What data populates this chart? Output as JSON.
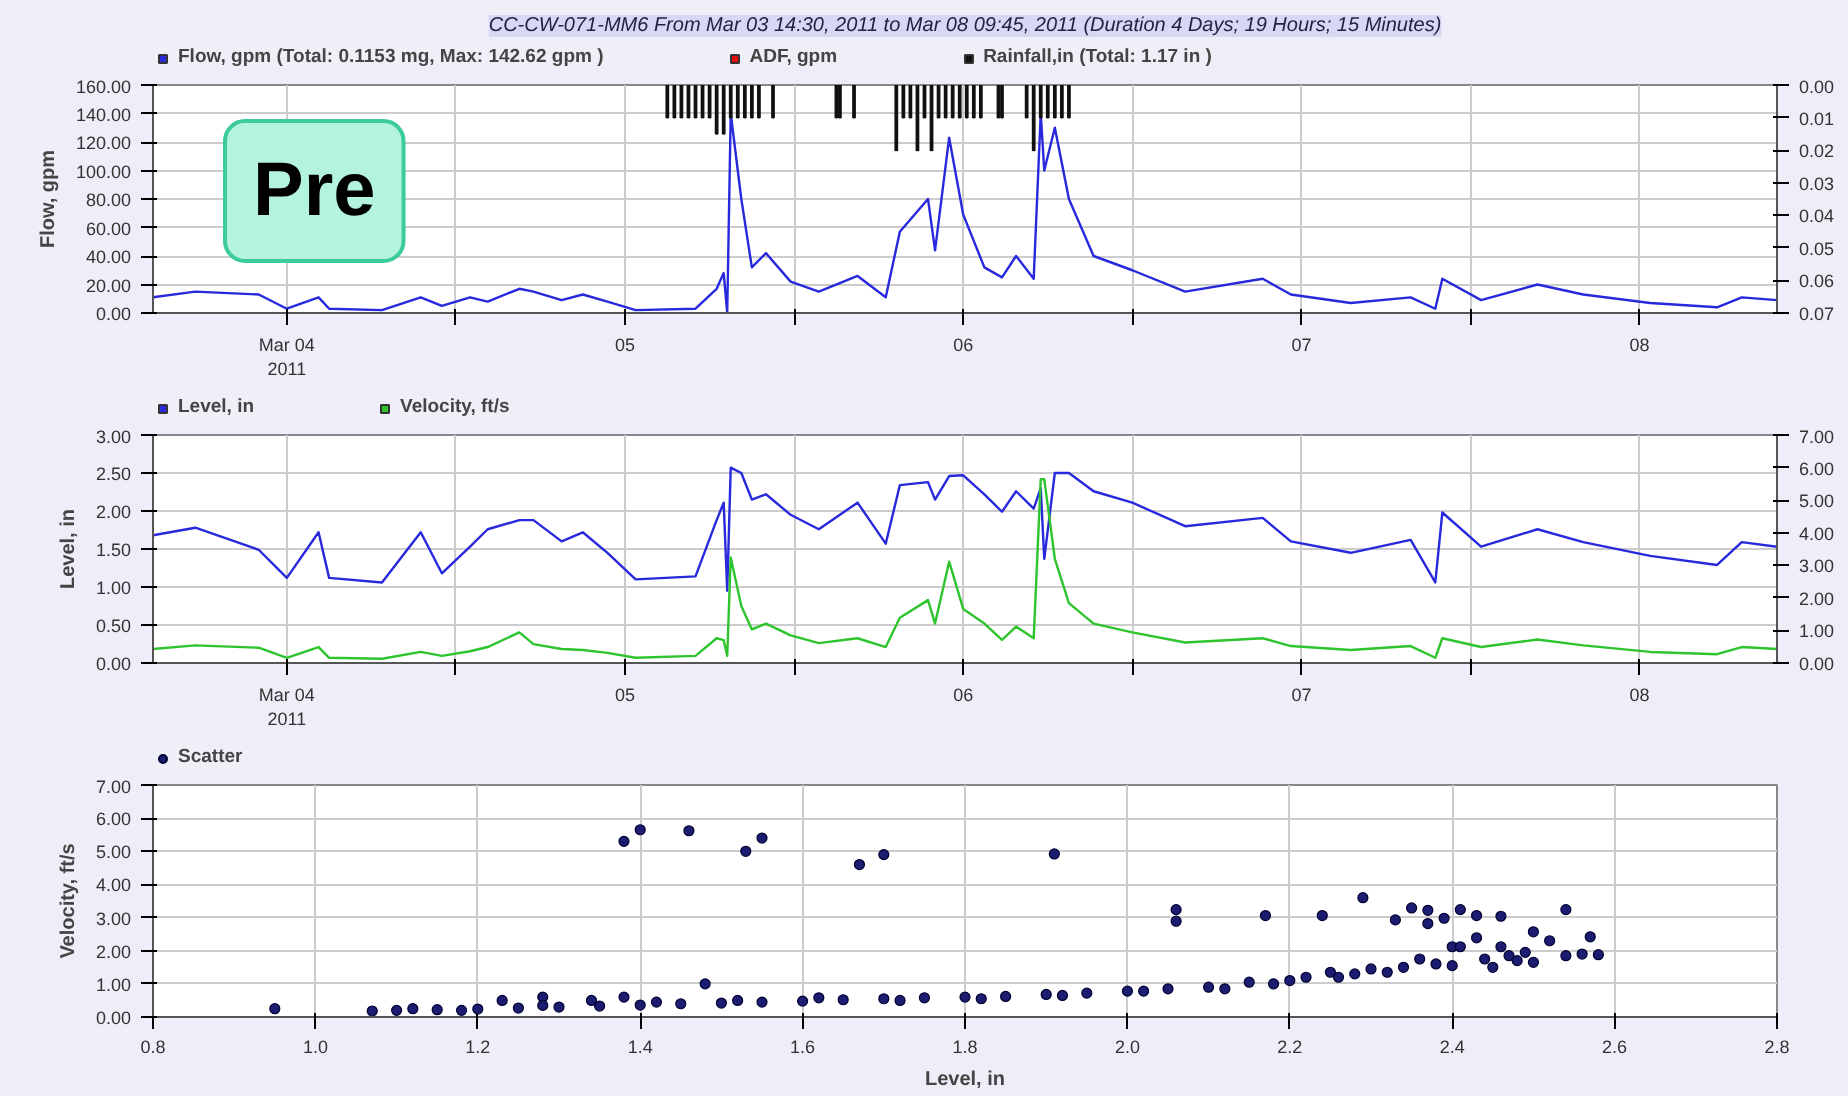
{
  "chart_data": [
    {
      "type": "line",
      "title": "CC-CW-071-MM6 From Mar 03 14:30, 2011 to Mar 08 09:45, 2011 (Duration 4 Days; 19 Hours; 15 Minutes)",
      "ylabel": "Flow, gpm",
      "annotations": [
        "Pre"
      ],
      "legend": "top left",
      "grid": true,
      "x": [
        "2011-03-03T14:30",
        "2011-03-03T17:30",
        "2011-03-03T22:00",
        "2011-03-04T00:00",
        "2011-03-04T02:15",
        "2011-03-04T03:00",
        "2011-03-04T06:45",
        "2011-03-04T09:30",
        "2011-03-04T11:00",
        "2011-03-04T13:00",
        "2011-03-04T14:15",
        "2011-03-04T16:30",
        "2011-03-04T17:30",
        "2011-03-04T19:30",
        "2011-03-04T21:00",
        "2011-03-04T22:45",
        "2011-03-05T00:45",
        "2011-03-05T05:00",
        "2011-03-05T06:30",
        "2011-03-05T07:00",
        "2011-03-05T07:15",
        "2011-03-05T07:30",
        "2011-03-05T08:15",
        "2011-03-05T09:00",
        "2011-03-05T10:00",
        "2011-03-05T11:45",
        "2011-03-05T13:45",
        "2011-03-05T16:30",
        "2011-03-05T18:30",
        "2011-03-05T19:30",
        "2011-03-05T21:30",
        "2011-03-05T22:00",
        "2011-03-05T23:00",
        "2011-03-06T00:00",
        "2011-03-06T01:30",
        "2011-03-06T02:45",
        "2011-03-06T03:45",
        "2011-03-06T05:00",
        "2011-03-06T05:30",
        "2011-03-06T05:45",
        "2011-03-06T06:30",
        "2011-03-06T07:30",
        "2011-03-06T09:15",
        "2011-03-06T12:00",
        "2011-03-06T15:45",
        "2011-03-06T21:15",
        "2011-03-06T23:15",
        "2011-03-07T03:30",
        "2011-03-07T07:45",
        "2011-03-07T09:30",
        "2011-03-07T10:00",
        "2011-03-07T12:45",
        "2011-03-07T16:45",
        "2011-03-07T20:00",
        "2011-03-08T00:45",
        "2011-03-08T05:30",
        "2011-03-08T07:15",
        "2011-03-08T09:45"
      ],
      "series": [
        {
          "name": "Flow, gpm (Total: 0.1153 mg, Max: 142.62 gpm )",
          "color": "#2828dc",
          "values": [
            11,
            15,
            13,
            3,
            11,
            3,
            2,
            11,
            5,
            11,
            8,
            17,
            15,
            9,
            13,
            8,
            2,
            3,
            17,
            28,
            0,
            140,
            80,
            32,
            42,
            22,
            15,
            26,
            11,
            57,
            80,
            44,
            123,
            69,
            32,
            25,
            40,
            24,
            140,
            100,
            130,
            80,
            40,
            30,
            15,
            24,
            13,
            7,
            11,
            3,
            24,
            9,
            20,
            13,
            7,
            4,
            11,
            9
          ]
        },
        {
          "name": "ADF, gpm",
          "color": "#e01010",
          "values": [
            null,
            null,
            null,
            null,
            null,
            null,
            null,
            null,
            null,
            null,
            null,
            null,
            null,
            null,
            null,
            null,
            null,
            null,
            null,
            null,
            null,
            null,
            null,
            null,
            null,
            null,
            null,
            null,
            null,
            null,
            null,
            null,
            null,
            null,
            null,
            null,
            null,
            null,
            null,
            null,
            null,
            null,
            null,
            null,
            null,
            null,
            null,
            null,
            null,
            null,
            null,
            null,
            null,
            null,
            null,
            null,
            null,
            null
          ]
        },
        {
          "name": "Rainfall,in (Total: 1.17 in )",
          "color": "#111111",
          "type": "bar",
          "axis": "y2",
          "x": [
            "2011-03-05T03:00",
            "2011-03-05T03:30",
            "2011-03-05T04:00",
            "2011-03-05T04:30",
            "2011-03-05T05:00",
            "2011-03-05T05:30",
            "2011-03-05T06:00",
            "2011-03-05T06:30",
            "2011-03-05T07:00",
            "2011-03-05T07:30",
            "2011-03-05T08:00",
            "2011-03-05T08:30",
            "2011-03-05T09:00",
            "2011-03-05T09:30",
            "2011-03-05T10:30",
            "2011-03-05T15:00",
            "2011-03-05T15:15",
            "2011-03-05T16:15",
            "2011-03-05T19:15",
            "2011-03-05T19:45",
            "2011-03-05T20:15",
            "2011-03-05T20:45",
            "2011-03-05T21:15",
            "2011-03-05T21:45",
            "2011-03-05T22:15",
            "2011-03-05T22:45",
            "2011-03-05T23:15",
            "2011-03-05T23:45",
            "2011-03-06T00:15",
            "2011-03-06T00:45",
            "2011-03-06T01:15",
            "2011-03-06T02:30",
            "2011-03-06T02:45",
            "2011-03-06T04:30",
            "2011-03-06T05:00",
            "2011-03-06T05:30",
            "2011-03-06T06:00",
            "2011-03-06T06:30",
            "2011-03-06T07:00",
            "2011-03-06T07:30"
          ],
          "values": [
            0.01,
            0.01,
            0.01,
            0.01,
            0.01,
            0.01,
            0.01,
            0.015,
            0.015,
            0.01,
            0.01,
            0.01,
            0.01,
            0.01,
            0.01,
            0.01,
            0.01,
            0.01,
            0.02,
            0.01,
            0.01,
            0.02,
            0.01,
            0.02,
            0.01,
            0.01,
            0.01,
            0.01,
            0.01,
            0.01,
            0.01,
            0.01,
            0.01,
            0.01,
            0.02,
            0.01,
            0.01,
            0.01,
            0.01,
            0.01
          ]
        }
      ],
      "xlim": [
        "2011-03-03T14:30",
        "2011-03-08T09:45"
      ],
      "xticks": [
        {
          "value": "2011-03-04",
          "label": "Mar 04\n2011"
        },
        {
          "value": "2011-03-04T12:00",
          "label": null
        },
        {
          "value": "2011-03-05",
          "label": "05"
        },
        {
          "value": "2011-03-05T12:00",
          "label": null
        },
        {
          "value": "2011-03-06",
          "label": "06"
        },
        {
          "value": "2011-03-06T12:00",
          "label": null
        },
        {
          "value": "2011-03-07",
          "label": "07"
        },
        {
          "value": "2011-03-07T12:00",
          "label": null
        },
        {
          "value": "2011-03-08",
          "label": "08"
        }
      ],
      "ylim": [
        0,
        160
      ],
      "yticks": [
        {
          "value": 0,
          "label": "0.00"
        },
        {
          "value": 20,
          "label": "20.00"
        },
        {
          "value": 40,
          "label": "40.00"
        },
        {
          "value": 60,
          "label": "60.00"
        },
        {
          "value": 80,
          "label": "80.00"
        },
        {
          "value": 100,
          "label": "100.00"
        },
        {
          "value": 120,
          "label": "120.00"
        },
        {
          "value": 140,
          "label": "140.00"
        },
        {
          "value": 160,
          "label": "160.00"
        }
      ],
      "y2lim": [
        0.07,
        0
      ],
      "y2ticks": [
        {
          "value": 0,
          "label": "0.00"
        },
        {
          "value": 0.01,
          "label": "0.01"
        },
        {
          "value": 0.02,
          "label": "0.02"
        },
        {
          "value": 0.03,
          "label": "0.03"
        },
        {
          "value": 0.04,
          "label": "0.04"
        },
        {
          "value": 0.05,
          "label": "0.05"
        },
        {
          "value": 0.06,
          "label": "0.06"
        },
        {
          "value": 0.07,
          "label": "0.07"
        }
      ]
    },
    {
      "type": "line",
      "ylabel": "Level, in",
      "legend": "top left",
      "grid": true,
      "x": [
        "2011-03-03T14:30",
        "2011-03-03T17:30",
        "2011-03-03T22:00",
        "2011-03-04T00:00",
        "2011-03-04T02:15",
        "2011-03-04T03:00",
        "2011-03-04T06:45",
        "2011-03-04T09:30",
        "2011-03-04T11:00",
        "2011-03-04T13:00",
        "2011-03-04T14:15",
        "2011-03-04T16:30",
        "2011-03-04T17:30",
        "2011-03-04T19:30",
        "2011-03-04T21:00",
        "2011-03-04T22:45",
        "2011-03-05T00:45",
        "2011-03-05T05:00",
        "2011-03-05T06:30",
        "2011-03-05T07:00",
        "2011-03-05T07:15",
        "2011-03-05T07:30",
        "2011-03-05T08:15",
        "2011-03-05T09:00",
        "2011-03-05T10:00",
        "2011-03-05T11:45",
        "2011-03-05T13:45",
        "2011-03-05T16:30",
        "2011-03-05T18:30",
        "2011-03-05T19:30",
        "2011-03-05T21:30",
        "2011-03-05T22:00",
        "2011-03-05T23:00",
        "2011-03-06T00:00",
        "2011-03-06T01:30",
        "2011-03-06T02:45",
        "2011-03-06T03:45",
        "2011-03-06T05:00",
        "2011-03-06T05:30",
        "2011-03-06T05:45",
        "2011-03-06T06:30",
        "2011-03-06T07:30",
        "2011-03-06T09:15",
        "2011-03-06T12:00",
        "2011-03-06T15:45",
        "2011-03-06T21:15",
        "2011-03-06T23:15",
        "2011-03-07T03:30",
        "2011-03-07T07:45",
        "2011-03-07T09:30",
        "2011-03-07T10:00",
        "2011-03-07T12:45",
        "2011-03-07T16:45",
        "2011-03-07T20:00",
        "2011-03-08T00:45",
        "2011-03-08T05:30",
        "2011-03-08T07:15",
        "2011-03-08T09:45"
      ],
      "series": [
        {
          "name": "Level, in",
          "color": "#2828dc",
          "values": [
            1.68,
            1.78,
            1.49,
            1.12,
            1.72,
            1.12,
            1.06,
            1.72,
            1.18,
            1.53,
            1.76,
            1.88,
            1.88,
            1.6,
            1.72,
            1.45,
            1.1,
            1.14,
            1.88,
            2.11,
            0.95,
            2.57,
            2.5,
            2.15,
            2.22,
            1.95,
            1.76,
            2.11,
            1.57,
            2.34,
            2.38,
            2.15,
            2.46,
            2.47,
            2.22,
            1.99,
            2.26,
            2.03,
            2.3,
            1.37,
            2.5,
            2.5,
            2.26,
            2.11,
            1.8,
            1.91,
            1.6,
            1.45,
            1.62,
            1.06,
            1.98,
            1.53,
            1.76,
            1.59,
            1.41,
            1.29,
            1.59,
            1.53
          ]
        },
        {
          "name": "Velocity, ft/s",
          "color": "#2ec42e",
          "axis": "y2",
          "values": [
            0.43,
            0.54,
            0.47,
            0.16,
            0.49,
            0.16,
            0.13,
            0.34,
            0.22,
            0.36,
            0.49,
            0.94,
            0.58,
            0.43,
            0.4,
            0.31,
            0.16,
            0.22,
            0.76,
            0.7,
            0.22,
            3.24,
            1.75,
            1.03,
            1.21,
            0.85,
            0.61,
            0.76,
            0.49,
            1.39,
            1.93,
            1.21,
            3.11,
            1.66,
            1.21,
            0.71,
            1.12,
            0.76,
            5.64,
            5.64,
            3.2,
            1.84,
            1.21,
            0.94,
            0.63,
            0.76,
            0.52,
            0.4,
            0.52,
            0.16,
            0.76,
            0.49,
            0.72,
            0.54,
            0.34,
            0.27,
            0.49,
            0.43
          ]
        }
      ],
      "xlim": [
        "2011-03-03T14:30",
        "2011-03-08T09:45"
      ],
      "xticks": [
        {
          "value": "2011-03-04",
          "label": "Mar 04\n2011"
        },
        {
          "value": "2011-03-04T12:00",
          "label": null
        },
        {
          "value": "2011-03-05",
          "label": "05"
        },
        {
          "value": "2011-03-05T12:00",
          "label": null
        },
        {
          "value": "2011-03-06",
          "label": "06"
        },
        {
          "value": "2011-03-06T12:00",
          "label": null
        },
        {
          "value": "2011-03-07",
          "label": "07"
        },
        {
          "value": "2011-03-07T12:00",
          "label": null
        },
        {
          "value": "2011-03-08",
          "label": "08"
        }
      ],
      "ylim": [
        0,
        3
      ],
      "yticks": [
        {
          "value": 0,
          "label": "0.00"
        },
        {
          "value": 0.5,
          "label": "0.50"
        },
        {
          "value": 1,
          "label": "1.00"
        },
        {
          "value": 1.5,
          "label": "1.50"
        },
        {
          "value": 2,
          "label": "2.00"
        },
        {
          "value": 2.5,
          "label": "2.50"
        },
        {
          "value": 3,
          "label": "3.00"
        }
      ],
      "y2lim": [
        0,
        7
      ],
      "y2ticks": [
        {
          "value": 0,
          "label": "0.00"
        },
        {
          "value": 1,
          "label": "1.00"
        },
        {
          "value": 2,
          "label": "2.00"
        },
        {
          "value": 3,
          "label": "3.00"
        },
        {
          "value": 4,
          "label": "4.00"
        },
        {
          "value": 5,
          "label": "5.00"
        },
        {
          "value": 6,
          "label": "6.00"
        },
        {
          "value": 7,
          "label": "7.00"
        }
      ]
    },
    {
      "type": "scatter",
      "xlabel": "Level, in",
      "ylabel": "Velocity, ft/s",
      "legend": "top left",
      "grid": true,
      "marker": "circle",
      "series": [
        {
          "name": "Scatter",
          "color": "#1c1c70",
          "x": [
            0.95,
            1.38,
            1.4,
            1.46,
            1.53,
            1.55,
            1.48,
            1.67,
            1.7,
            1.23,
            1.28,
            1.38,
            1.34,
            1.91,
            2.06,
            2.06,
            2.17,
            2.24,
            2.29,
            2.33,
            2.35,
            2.37,
            2.37,
            2.39,
            2.41,
            2.43,
            2.46,
            2.54,
            2.5,
            2.52,
            2.57,
            2.43,
            2.4,
            2.41,
            2.46,
            2.58,
            2.54,
            2.56,
            2.49,
            2.47,
            2.44,
            2.5,
            2.38,
            2.36,
            2.34,
            2.3,
            2.28,
            2.25,
            2.22,
            2.2,
            2.15,
            2.1,
            2.05,
            2.0,
            1.95,
            1.9,
            1.85,
            1.8,
            1.75,
            1.7,
            1.65,
            1.6,
            1.55,
            1.5,
            1.45,
            1.4,
            1.35,
            1.3,
            1.25,
            1.2,
            1.15,
            1.1,
            1.07,
            1.12,
            1.18,
            1.28,
            1.42,
            1.52,
            1.62,
            1.72,
            1.82,
            1.92,
            2.02,
            2.12,
            2.18,
            2.26,
            2.32,
            2.4,
            2.45,
            2.48
          ],
          "values": [
            0.25,
            5.3,
            5.65,
            5.62,
            5.0,
            5.4,
            1.0,
            4.6,
            4.9,
            0.5,
            0.6,
            0.6,
            0.5,
            4.92,
            3.24,
            2.89,
            3.06,
            3.06,
            3.6,
            2.93,
            3.29,
            3.22,
            2.82,
            2.98,
            3.24,
            3.06,
            3.04,
            3.24,
            2.57,
            2.3,
            2.42,
            2.39,
            2.12,
            2.12,
            2.12,
            1.88,
            1.85,
            1.9,
            1.95,
            1.85,
            1.75,
            1.65,
            1.6,
            1.75,
            1.5,
            1.45,
            1.3,
            1.35,
            1.2,
            1.1,
            1.05,
            0.9,
            0.85,
            0.78,
            0.72,
            0.68,
            0.62,
            0.6,
            0.58,
            0.55,
            0.52,
            0.48,
            0.45,
            0.42,
            0.4,
            0.36,
            0.33,
            0.3,
            0.27,
            0.24,
            0.22,
            0.2,
            0.18,
            0.25,
            0.2,
            0.35,
            0.45,
            0.5,
            0.58,
            0.5,
            0.55,
            0.65,
            0.78,
            0.85,
            1.0,
            1.2,
            1.35,
            1.55,
            1.5,
            1.7
          ]
        }
      ],
      "xlim": [
        0.8,
        2.8
      ],
      "xticks": [
        {
          "value": 0.8,
          "label": "0.8"
        },
        {
          "value": 1.0,
          "label": "1.0"
        },
        {
          "value": 1.2,
          "label": "1.2"
        },
        {
          "value": 1.4,
          "label": "1.4"
        },
        {
          "value": 1.6,
          "label": "1.6"
        },
        {
          "value": 1.8,
          "label": "1.8"
        },
        {
          "value": 2.0,
          "label": "2.0"
        },
        {
          "value": 2.2,
          "label": "2.2"
        },
        {
          "value": 2.4,
          "label": "2.4"
        },
        {
          "value": 2.6,
          "label": "2.6"
        },
        {
          "value": 2.8,
          "label": "2.8"
        }
      ],
      "ylim": [
        0,
        7
      ],
      "yticks": [
        {
          "value": 0,
          "label": "0.00"
        },
        {
          "value": 1,
          "label": "1.00"
        },
        {
          "value": 2,
          "label": "2.00"
        },
        {
          "value": 3,
          "label": "3.00"
        },
        {
          "value": 4,
          "label": "4.00"
        },
        {
          "value": 5,
          "label": "5.00"
        },
        {
          "value": 6,
          "label": "6.00"
        },
        {
          "value": 7,
          "label": "7.00"
        }
      ]
    }
  ]
}
